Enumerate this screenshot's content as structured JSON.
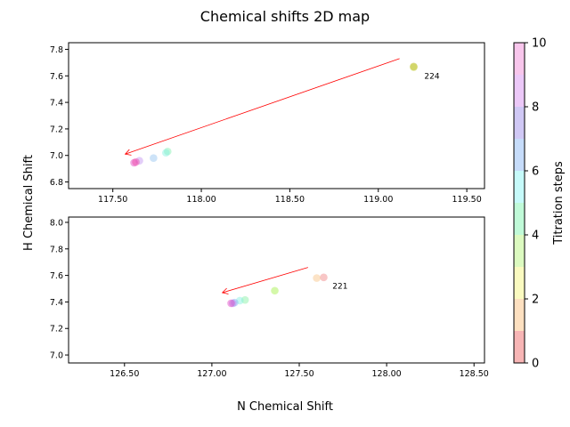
{
  "chart_data": {
    "type": "scatter",
    "title": "Chemical shifts 2D map",
    "xlabel": "N Chemical Shift",
    "ylabel": "H Chemical Shift",
    "grid": false,
    "colorbar": {
      "label": "Titration steps",
      "range": [
        0,
        10
      ],
      "ticks": [
        "0",
        "2",
        "4",
        "6",
        "8",
        "10"
      ],
      "colors": [
        "#f7b5b5",
        "#fde0c0",
        "#fafac0",
        "#dcfac0",
        "#c0fad8",
        "#c6fafa",
        "#c6dcfa",
        "#d0c8f5",
        "#ecc8f8",
        "#f8c6ec"
      ]
    },
    "panels": [
      {
        "xlim": [
          117.25,
          119.6
        ],
        "ylim": [
          6.75,
          7.85
        ],
        "xticks": [
          "117.50",
          "118.00",
          "118.50",
          "119.00",
          "119.50"
        ],
        "xtick_values": [
          117.5,
          118.0,
          118.5,
          119.0,
          119.5
        ],
        "yticks": [
          "6.8",
          "7.0",
          "7.2",
          "7.4",
          "7.6",
          "7.8"
        ],
        "ytick_values": [
          6.8,
          7.0,
          7.2,
          7.4,
          7.6,
          7.8
        ],
        "points": [
          {
            "x": 119.2,
            "y": 7.67,
            "color": "#b0b000"
          },
          {
            "x": 119.2,
            "y": 7.665,
            "color": "#c8d040"
          },
          {
            "x": 117.81,
            "y": 7.03,
            "color": "#80f0b0"
          },
          {
            "x": 117.8,
            "y": 7.02,
            "color": "#80f0e0"
          },
          {
            "x": 117.73,
            "y": 6.98,
            "color": "#90c0f0"
          },
          {
            "x": 117.65,
            "y": 6.96,
            "color": "#c090f0"
          },
          {
            "x": 117.62,
            "y": 6.945,
            "color": "#e040c0"
          },
          {
            "x": 117.63,
            "y": 6.95,
            "color": "#f040a0"
          }
        ],
        "annotation": {
          "text": "224",
          "x": 119.26,
          "y": 7.58
        },
        "arrow": {
          "from": [
            119.12,
            7.73
          ],
          "to": [
            117.57,
            7.01
          ],
          "color": "#ff0000"
        }
      },
      {
        "xlim": [
          126.18,
          128.56
        ],
        "ylim": [
          6.94,
          8.04
        ],
        "xticks": [
          "126.50",
          "127.00",
          "127.50",
          "128.00",
          "128.50"
        ],
        "xtick_values": [
          126.5,
          127.0,
          127.5,
          128.0,
          128.5
        ],
        "yticks": [
          "7.0",
          "7.2",
          "7.4",
          "7.6",
          "7.8",
          "8.0"
        ],
        "ytick_values": [
          7.0,
          7.2,
          7.4,
          7.6,
          7.8,
          8.0
        ],
        "points": [
          {
            "x": 127.64,
            "y": 7.585,
            "color": "#f08080"
          },
          {
            "x": 127.6,
            "y": 7.58,
            "color": "#f8c080"
          },
          {
            "x": 127.36,
            "y": 7.485,
            "color": "#a0f040"
          },
          {
            "x": 127.19,
            "y": 7.415,
            "color": "#80f0a0"
          },
          {
            "x": 127.16,
            "y": 7.41,
            "color": "#80f0e0"
          },
          {
            "x": 127.13,
            "y": 7.395,
            "color": "#80b0f0"
          },
          {
            "x": 127.12,
            "y": 7.39,
            "color": "#b080f0"
          },
          {
            "x": 127.11,
            "y": 7.39,
            "color": "#e040c0"
          }
        ],
        "annotation": {
          "text": "221",
          "x": 127.69,
          "y": 7.5
        },
        "arrow": {
          "from": [
            127.55,
            7.66
          ],
          "to": [
            127.06,
            7.47
          ],
          "color": "#ff0000"
        }
      }
    ]
  }
}
